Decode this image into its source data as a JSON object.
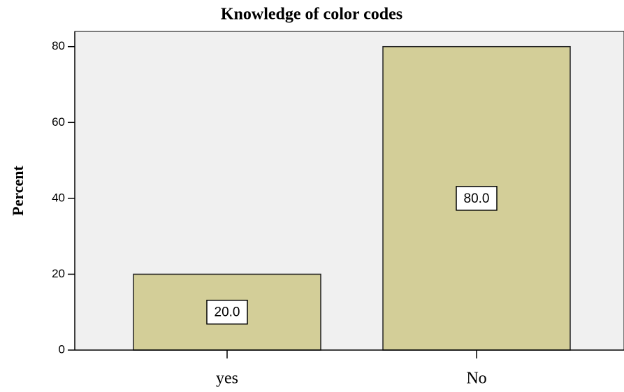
{
  "chart_data": {
    "type": "bar",
    "title": "Knowledge of color codes",
    "y_label": "Percent",
    "categories": [
      "yes",
      "No"
    ],
    "values": [
      20,
      80
    ],
    "value_labels": [
      "20.0",
      "80.0"
    ],
    "color": "#d3ce98",
    "ylim": [
      0,
      84
    ],
    "yticks": [
      0,
      20,
      40,
      60,
      80
    ],
    "grid": false
  }
}
